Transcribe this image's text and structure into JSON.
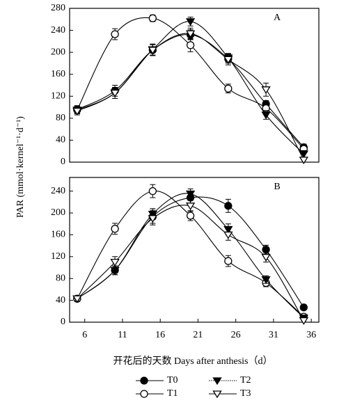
{
  "chart_data": [
    {
      "type": "line",
      "title": "A",
      "y_label": "PAR (mmol·kernel⁻¹·d⁻¹)",
      "x": [
        5,
        10,
        15,
        20,
        25,
        30,
        35
      ],
      "xlim": [
        4,
        37
      ],
      "ylim": [
        0,
        280
      ],
      "yticks": [
        0,
        40,
        80,
        120,
        160,
        200,
        240,
        280
      ],
      "series": [
        {
          "name": "T0",
          "marker": "circle",
          "filled": true,
          "color": "#000000",
          "values": [
            96,
            130,
            204,
            232,
            188,
            106,
            27
          ],
          "errors": [
            7,
            10,
            10,
            9,
            8,
            6,
            6
          ]
        },
        {
          "name": "T1",
          "marker": "circle",
          "filled": false,
          "color": "#000000",
          "values": [
            95,
            233,
            262,
            213,
            134,
            98,
            24
          ],
          "errors": [
            7,
            10,
            6,
            12,
            8,
            7,
            6
          ]
        },
        {
          "name": "T2",
          "marker": "triangle-down",
          "filled": true,
          "color": "#000000",
          "line_style": "dotted",
          "values": [
            95,
            126,
            205,
            256,
            190,
            86,
            15
          ],
          "errors": [
            7,
            10,
            10,
            8,
            8,
            8,
            6
          ]
        },
        {
          "name": "T3",
          "marker": "triangle-down",
          "filled": false,
          "color": "#000000",
          "values": [
            93,
            126,
            204,
            234,
            187,
            132,
            4
          ],
          "errors": [
            7,
            10,
            10,
            10,
            10,
            12,
            4
          ]
        }
      ]
    },
    {
      "type": "line",
      "title": "B",
      "x_label": "开花后的天数 Days after anthesis（d）",
      "x": [
        5,
        10,
        15,
        20,
        25,
        30,
        35
      ],
      "xlim": [
        4,
        37
      ],
      "ylim": [
        0,
        265
      ],
      "xticks": [
        6,
        11,
        16,
        21,
        26,
        31,
        36
      ],
      "yticks": [
        0,
        40,
        80,
        120,
        160,
        200,
        240
      ],
      "series": [
        {
          "marker": "circle",
          "filled": true,
          "color": "#000000",
          "values": [
            43,
            95,
            193,
            228,
            213,
            133,
            27
          ],
          "errors": [
            4,
            8,
            12,
            12,
            12,
            8,
            4
          ]
        },
        {
          "marker": "circle",
          "filled": false,
          "color": "#000000",
          "values": [
            43,
            171,
            240,
            195,
            112,
            72,
            10
          ],
          "errors": [
            4,
            10,
            12,
            9,
            10,
            7,
            4
          ]
        },
        {
          "marker": "triangle-down",
          "filled": true,
          "color": "#000000",
          "line_style": "dotted",
          "values": [
            43,
            95,
            198,
            235,
            170,
            78,
            8
          ],
          "errors": [
            4,
            8,
            10,
            9,
            10,
            7,
            4
          ]
        },
        {
          "marker": "triangle-down",
          "filled": false,
          "color": "#000000",
          "values": [
            43,
            110,
            190,
            213,
            160,
            119,
            3
          ],
          "errors": [
            4,
            10,
            12,
            10,
            10,
            9,
            3
          ]
        }
      ]
    }
  ]
}
